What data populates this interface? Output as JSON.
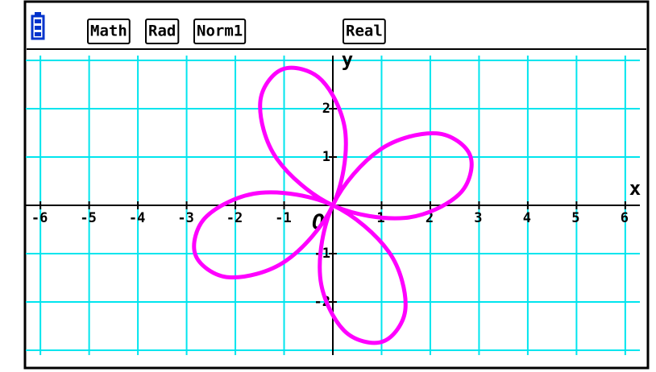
{
  "status_bar": {
    "modes": [
      "Math",
      "Rad",
      "Norm1"
    ],
    "format": "Real"
  },
  "chart_data": {
    "type": "line",
    "color": "#ff00ff",
    "x_label": "x",
    "y_label": "y",
    "origin_label": "O",
    "xlim": [
      -6.3,
      6.3
    ],
    "ylim": [
      -3.1,
      3.1
    ],
    "xticks": [
      -6,
      -5,
      -4,
      -3,
      -2,
      -1,
      1,
      2,
      3,
      4,
      5,
      6
    ],
    "yticks": [
      -2,
      -1,
      1,
      2
    ],
    "xgrid": [
      -6,
      -5,
      -4,
      -3,
      -2,
      -1,
      0,
      1,
      2,
      3,
      4,
      5,
      6
    ],
    "ygrid": [
      -3,
      -2,
      -1,
      0,
      1,
      2,
      3
    ],
    "grid": true,
    "x": [
      0,
      1.477,
      2.588,
      2.819,
      2.128,
      0.964,
      0,
      -0.26,
      0.226,
      1.026,
      1.49,
      1.149,
      0,
      -1.477,
      -2.588,
      -2.819,
      -2.128,
      -0.964,
      0,
      0.26,
      -0.226,
      -1.026,
      -1.49,
      -1.149
    ],
    "values": [
      0,
      -0.26,
      0.226,
      1.026,
      1.49,
      1.149,
      0,
      -1.477,
      -2.588,
      -2.819,
      -2.128,
      -0.964,
      0,
      0.26,
      -0.226,
      -1.026,
      -1.49,
      -1.149,
      0,
      1.477,
      2.588,
      2.819,
      2.128,
      0.964
    ]
  }
}
